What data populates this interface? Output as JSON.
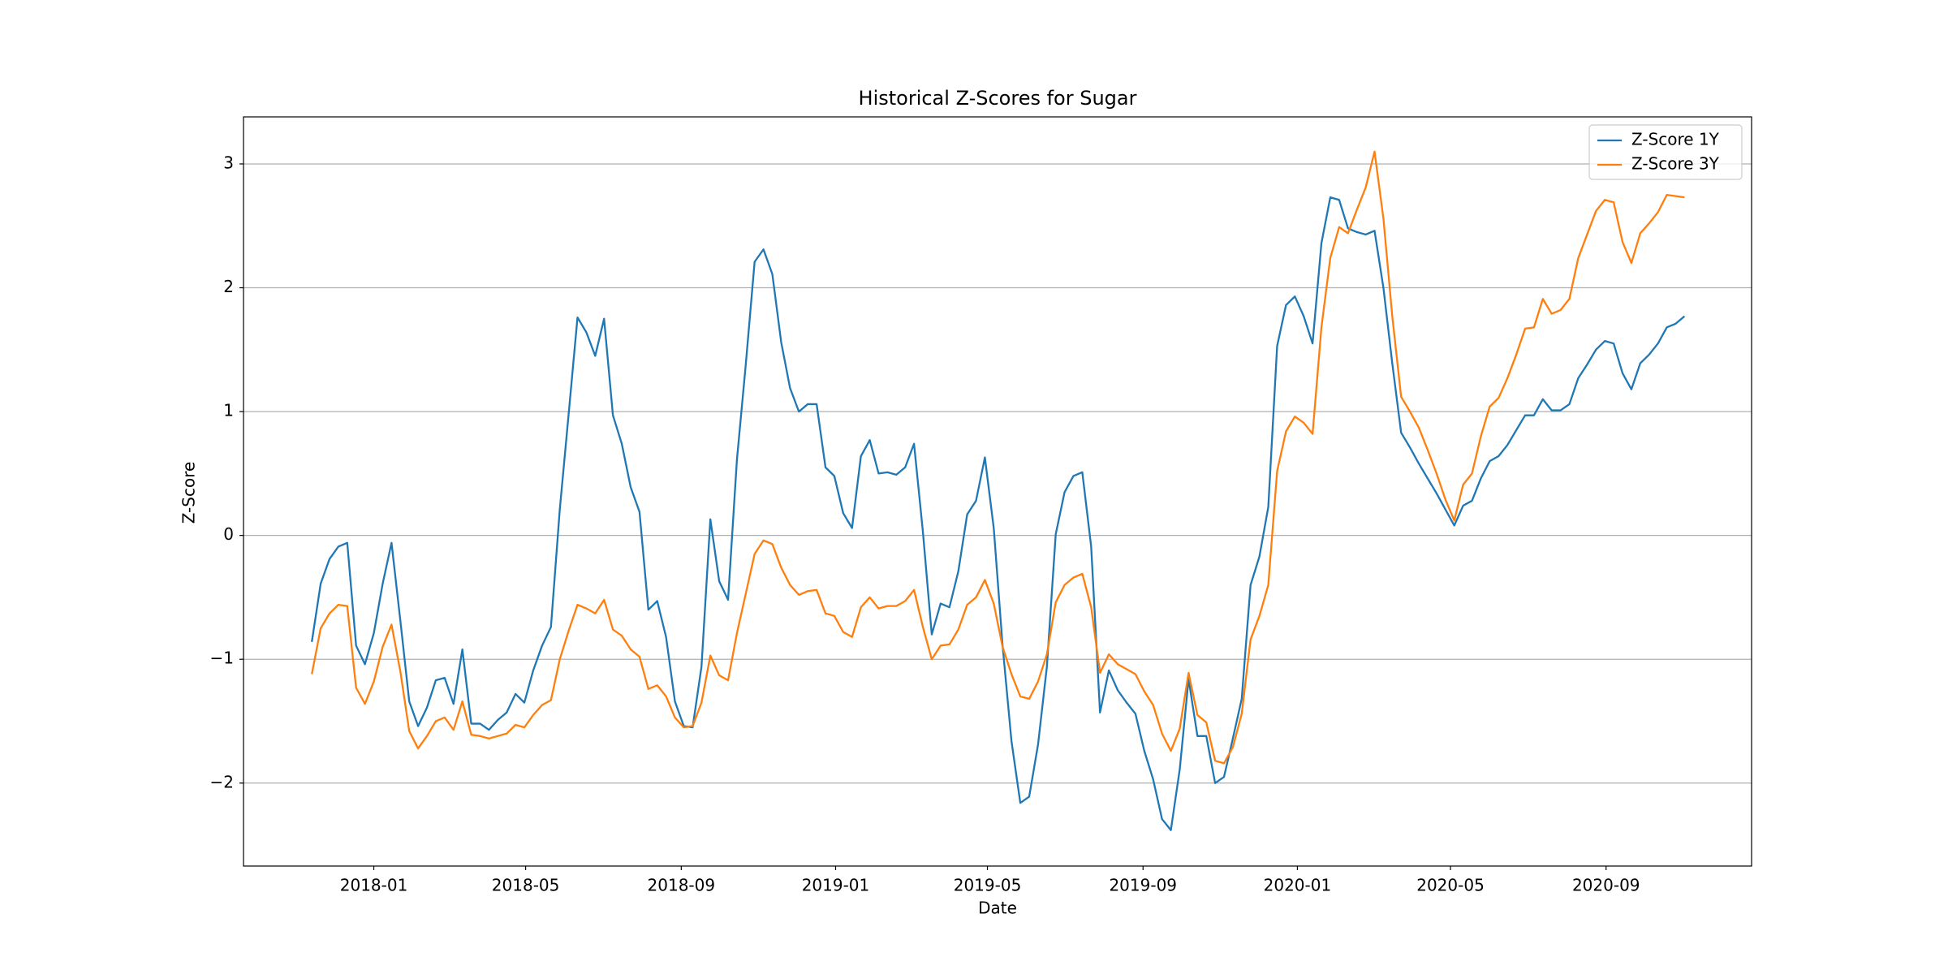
{
  "chart_data": {
    "type": "line",
    "title": "Historical Z-Scores for Sugar",
    "xlabel": "Date",
    "ylabel": "Z-Score",
    "x": [
      "2017-11-13",
      "2017-11-20",
      "2017-11-27",
      "2017-12-04",
      "2017-12-11",
      "2017-12-18",
      "2017-12-25",
      "2018-01-01",
      "2018-01-08",
      "2018-01-15",
      "2018-01-22",
      "2018-01-29",
      "2018-02-05",
      "2018-02-12",
      "2018-02-19",
      "2018-02-26",
      "2018-03-05",
      "2018-03-12",
      "2018-03-19",
      "2018-03-26",
      "2018-04-02",
      "2018-04-09",
      "2018-04-16",
      "2018-04-23",
      "2018-04-30",
      "2018-05-07",
      "2018-05-14",
      "2018-05-21",
      "2018-05-28",
      "2018-06-04",
      "2018-06-11",
      "2018-06-18",
      "2018-06-25",
      "2018-07-02",
      "2018-07-09",
      "2018-07-16",
      "2018-07-23",
      "2018-07-30",
      "2018-08-06",
      "2018-08-13",
      "2018-08-20",
      "2018-08-27",
      "2018-09-03",
      "2018-09-10",
      "2018-09-17",
      "2018-09-24",
      "2018-10-01",
      "2018-10-08",
      "2018-10-15",
      "2018-10-22",
      "2018-10-29",
      "2018-11-05",
      "2018-11-12",
      "2018-11-19",
      "2018-11-26",
      "2018-12-03",
      "2018-12-10",
      "2018-12-17",
      "2018-12-24",
      "2018-12-31",
      "2019-01-07",
      "2019-01-14",
      "2019-01-21",
      "2019-01-28",
      "2019-02-04",
      "2019-02-11",
      "2019-02-18",
      "2019-02-25",
      "2019-03-04",
      "2019-03-11",
      "2019-03-18",
      "2019-03-25",
      "2019-04-01",
      "2019-04-08",
      "2019-04-15",
      "2019-04-22",
      "2019-04-29",
      "2019-05-06",
      "2019-05-13",
      "2019-05-20",
      "2019-05-27",
      "2019-06-03",
      "2019-06-10",
      "2019-06-17",
      "2019-06-24",
      "2019-07-01",
      "2019-07-08",
      "2019-07-15",
      "2019-07-22",
      "2019-07-29",
      "2019-08-05",
      "2019-08-12",
      "2019-08-19",
      "2019-08-26",
      "2019-09-02",
      "2019-09-09",
      "2019-09-16",
      "2019-09-23",
      "2019-09-30",
      "2019-10-07",
      "2019-10-14",
      "2019-10-21",
      "2019-10-28",
      "2019-11-04",
      "2019-11-11",
      "2019-11-18",
      "2019-11-25",
      "2019-12-02",
      "2019-12-09",
      "2019-12-16",
      "2019-12-23",
      "2019-12-30",
      "2020-01-06",
      "2020-01-13",
      "2020-01-20",
      "2020-01-27",
      "2020-02-03",
      "2020-02-10",
      "2020-02-17",
      "2020-02-24",
      "2020-03-02",
      "2020-03-09",
      "2020-03-16",
      "2020-03-23",
      "2020-03-30",
      "2020-04-06",
      "2020-04-13",
      "2020-04-20",
      "2020-04-27",
      "2020-05-04",
      "2020-05-11",
      "2020-05-18",
      "2020-05-25",
      "2020-06-01",
      "2020-06-08",
      "2020-06-15",
      "2020-06-22",
      "2020-06-29",
      "2020-07-06",
      "2020-07-13",
      "2020-07-20",
      "2020-07-27",
      "2020-08-03",
      "2020-08-10",
      "2020-08-17",
      "2020-08-24",
      "2020-08-31",
      "2020-09-07",
      "2020-09-14",
      "2020-09-21",
      "2020-09-28",
      "2020-10-05",
      "2020-10-12",
      "2020-10-19",
      "2020-10-26",
      "2020-11-02"
    ],
    "series": [
      {
        "name": "Z-Score 1Y",
        "color": "#1f77b4",
        "values": [
          -0.86,
          -0.39,
          -0.19,
          -0.09,
          -0.06,
          -0.89,
          -1.04,
          -0.79,
          -0.39,
          -0.06,
          -0.69,
          -1.34,
          -1.54,
          -1.39,
          -1.17,
          -1.15,
          -1.36,
          -0.92,
          -1.52,
          -1.52,
          -1.57,
          -1.49,
          -1.43,
          -1.28,
          -1.35,
          -1.09,
          -0.89,
          -0.74,
          0.21,
          0.98,
          1.76,
          1.64,
          1.45,
          1.75,
          0.97,
          0.74,
          0.39,
          0.19,
          -0.6,
          -0.53,
          -0.82,
          -1.34,
          -1.54,
          -1.55,
          -1.06,
          0.13,
          -0.37,
          -0.52,
          0.61,
          1.38,
          2.21,
          2.31,
          2.11,
          1.56,
          1.19,
          1.0,
          1.06,
          1.06,
          0.55,
          0.48,
          0.18,
          0.06,
          0.64,
          0.77,
          0.5,
          0.51,
          0.49,
          0.55,
          0.74,
          0.03,
          -0.8,
          -0.55,
          -0.58,
          -0.29,
          0.17,
          0.28,
          0.63,
          0.06,
          -0.89,
          -1.66,
          -2.16,
          -2.11,
          -1.69,
          -1.06,
          0.01,
          0.35,
          0.48,
          0.51,
          -0.09,
          -1.43,
          -1.09,
          -1.25,
          -1.35,
          -1.44,
          -1.74,
          -1.97,
          -2.29,
          -2.38,
          -1.89,
          -1.16,
          -1.62,
          -1.62,
          -2.0,
          -1.95,
          -1.64,
          -1.32,
          -0.4,
          -0.17,
          0.23,
          1.53,
          1.86,
          1.93,
          1.77,
          1.55,
          2.36,
          2.73,
          2.71,
          2.48,
          2.45,
          2.43,
          2.46,
          2.0,
          1.39,
          0.83,
          0.71,
          0.58,
          0.46,
          0.34,
          0.21,
          0.08,
          0.24,
          0.28,
          0.46,
          0.6,
          0.64,
          0.73,
          0.85,
          0.97,
          0.97,
          1.1,
          1.01,
          1.01,
          1.06,
          1.27,
          1.38,
          1.5,
          1.57,
          1.55,
          1.31,
          1.18,
          1.39,
          1.46,
          1.55,
          1.68,
          1.71,
          1.77
        ]
      },
      {
        "name": "Z-Score 3Y",
        "color": "#ff7f0e",
        "values": [
          -1.12,
          -0.75,
          -0.63,
          -0.56,
          -0.57,
          -1.23,
          -1.36,
          -1.18,
          -0.9,
          -0.72,
          -1.1,
          -1.58,
          -1.72,
          -1.62,
          -1.5,
          -1.47,
          -1.57,
          -1.34,
          -1.61,
          -1.62,
          -1.64,
          -1.62,
          -1.6,
          -1.53,
          -1.55,
          -1.45,
          -1.37,
          -1.33,
          -1.0,
          -0.77,
          -0.56,
          -0.59,
          -0.63,
          -0.52,
          -0.76,
          -0.81,
          -0.92,
          -0.98,
          -1.24,
          -1.21,
          -1.3,
          -1.47,
          -1.55,
          -1.54,
          -1.35,
          -0.97,
          -1.13,
          -1.17,
          -0.79,
          -0.47,
          -0.15,
          -0.04,
          -0.07,
          -0.26,
          -0.4,
          -0.48,
          -0.45,
          -0.44,
          -0.63,
          -0.65,
          -0.78,
          -0.82,
          -0.58,
          -0.5,
          -0.59,
          -0.57,
          -0.57,
          -0.53,
          -0.44,
          -0.74,
          -1.0,
          -0.89,
          -0.88,
          -0.76,
          -0.56,
          -0.5,
          -0.36,
          -0.55,
          -0.9,
          -1.12,
          -1.3,
          -1.32,
          -1.18,
          -0.96,
          -0.54,
          -0.4,
          -0.34,
          -0.31,
          -0.58,
          -1.11,
          -0.96,
          -1.04,
          -1.08,
          -1.12,
          -1.26,
          -1.37,
          -1.6,
          -1.74,
          -1.56,
          -1.11,
          -1.45,
          -1.51,
          -1.82,
          -1.84,
          -1.71,
          -1.44,
          -0.84,
          -0.65,
          -0.4,
          0.52,
          0.84,
          0.96,
          0.91,
          0.82,
          1.68,
          2.24,
          2.49,
          2.44,
          2.63,
          2.81,
          3.1,
          2.56,
          1.77,
          1.12,
          1.0,
          0.87,
          0.69,
          0.5,
          0.29,
          0.12,
          0.41,
          0.5,
          0.8,
          1.04,
          1.11,
          1.27,
          1.46,
          1.67,
          1.68,
          1.91,
          1.79,
          1.82,
          1.91,
          2.24,
          2.43,
          2.62,
          2.71,
          2.69,
          2.37,
          2.2,
          2.44,
          2.52,
          2.61,
          2.75,
          2.74,
          2.73
        ]
      }
    ],
    "xlim": [
      "2017-09-20",
      "2020-12-25"
    ],
    "xticks": [
      "2018-01",
      "2018-05",
      "2018-09",
      "2019-01",
      "2019-05",
      "2019-09",
      "2020-01",
      "2020-05",
      "2020-09"
    ],
    "ylim": [
      -2.67,
      3.38
    ],
    "yticks": [
      {
        "value": -2,
        "label": "−2"
      },
      {
        "value": -1,
        "label": "−1"
      },
      0,
      1,
      2,
      3
    ],
    "grid": "y",
    "legend": "upper right"
  }
}
